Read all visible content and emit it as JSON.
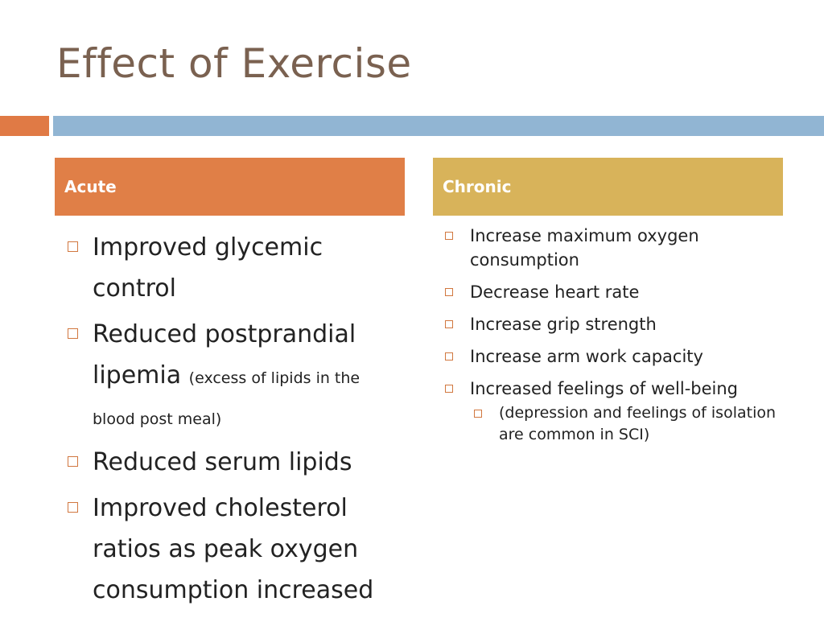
{
  "slide": {
    "title": "Effect of Exercise",
    "accent_orange": "#e07a45",
    "accent_blue": "#91b5d3",
    "header_acute_color": "#e07f47",
    "header_chronic_color": "#d8b35a"
  },
  "acute": {
    "header": "Acute",
    "items": [
      {
        "text": "Improved glycemic control"
      },
      {
        "text": "Reduced postprandial lipemia",
        "note": "(excess of lipids in the blood post meal)"
      },
      {
        "text": "Reduced serum lipids"
      },
      {
        "text": "Improved cholesterol ratios as peak oxygen consumption increased"
      }
    ]
  },
  "chronic": {
    "header": "Chronic",
    "items": [
      {
        "text": "Increase maximum oxygen consumption"
      },
      {
        "text": "Decrease heart rate"
      },
      {
        "text": "Increase grip strength"
      },
      {
        "text": "Increase arm work capacity"
      },
      {
        "text": "Increased feelings of well-being"
      }
    ],
    "sub_items": [
      {
        "text": "(depression and feelings of isolation are common in SCI)"
      }
    ]
  },
  "icons": {
    "bullet": "square-bullet-icon"
  }
}
